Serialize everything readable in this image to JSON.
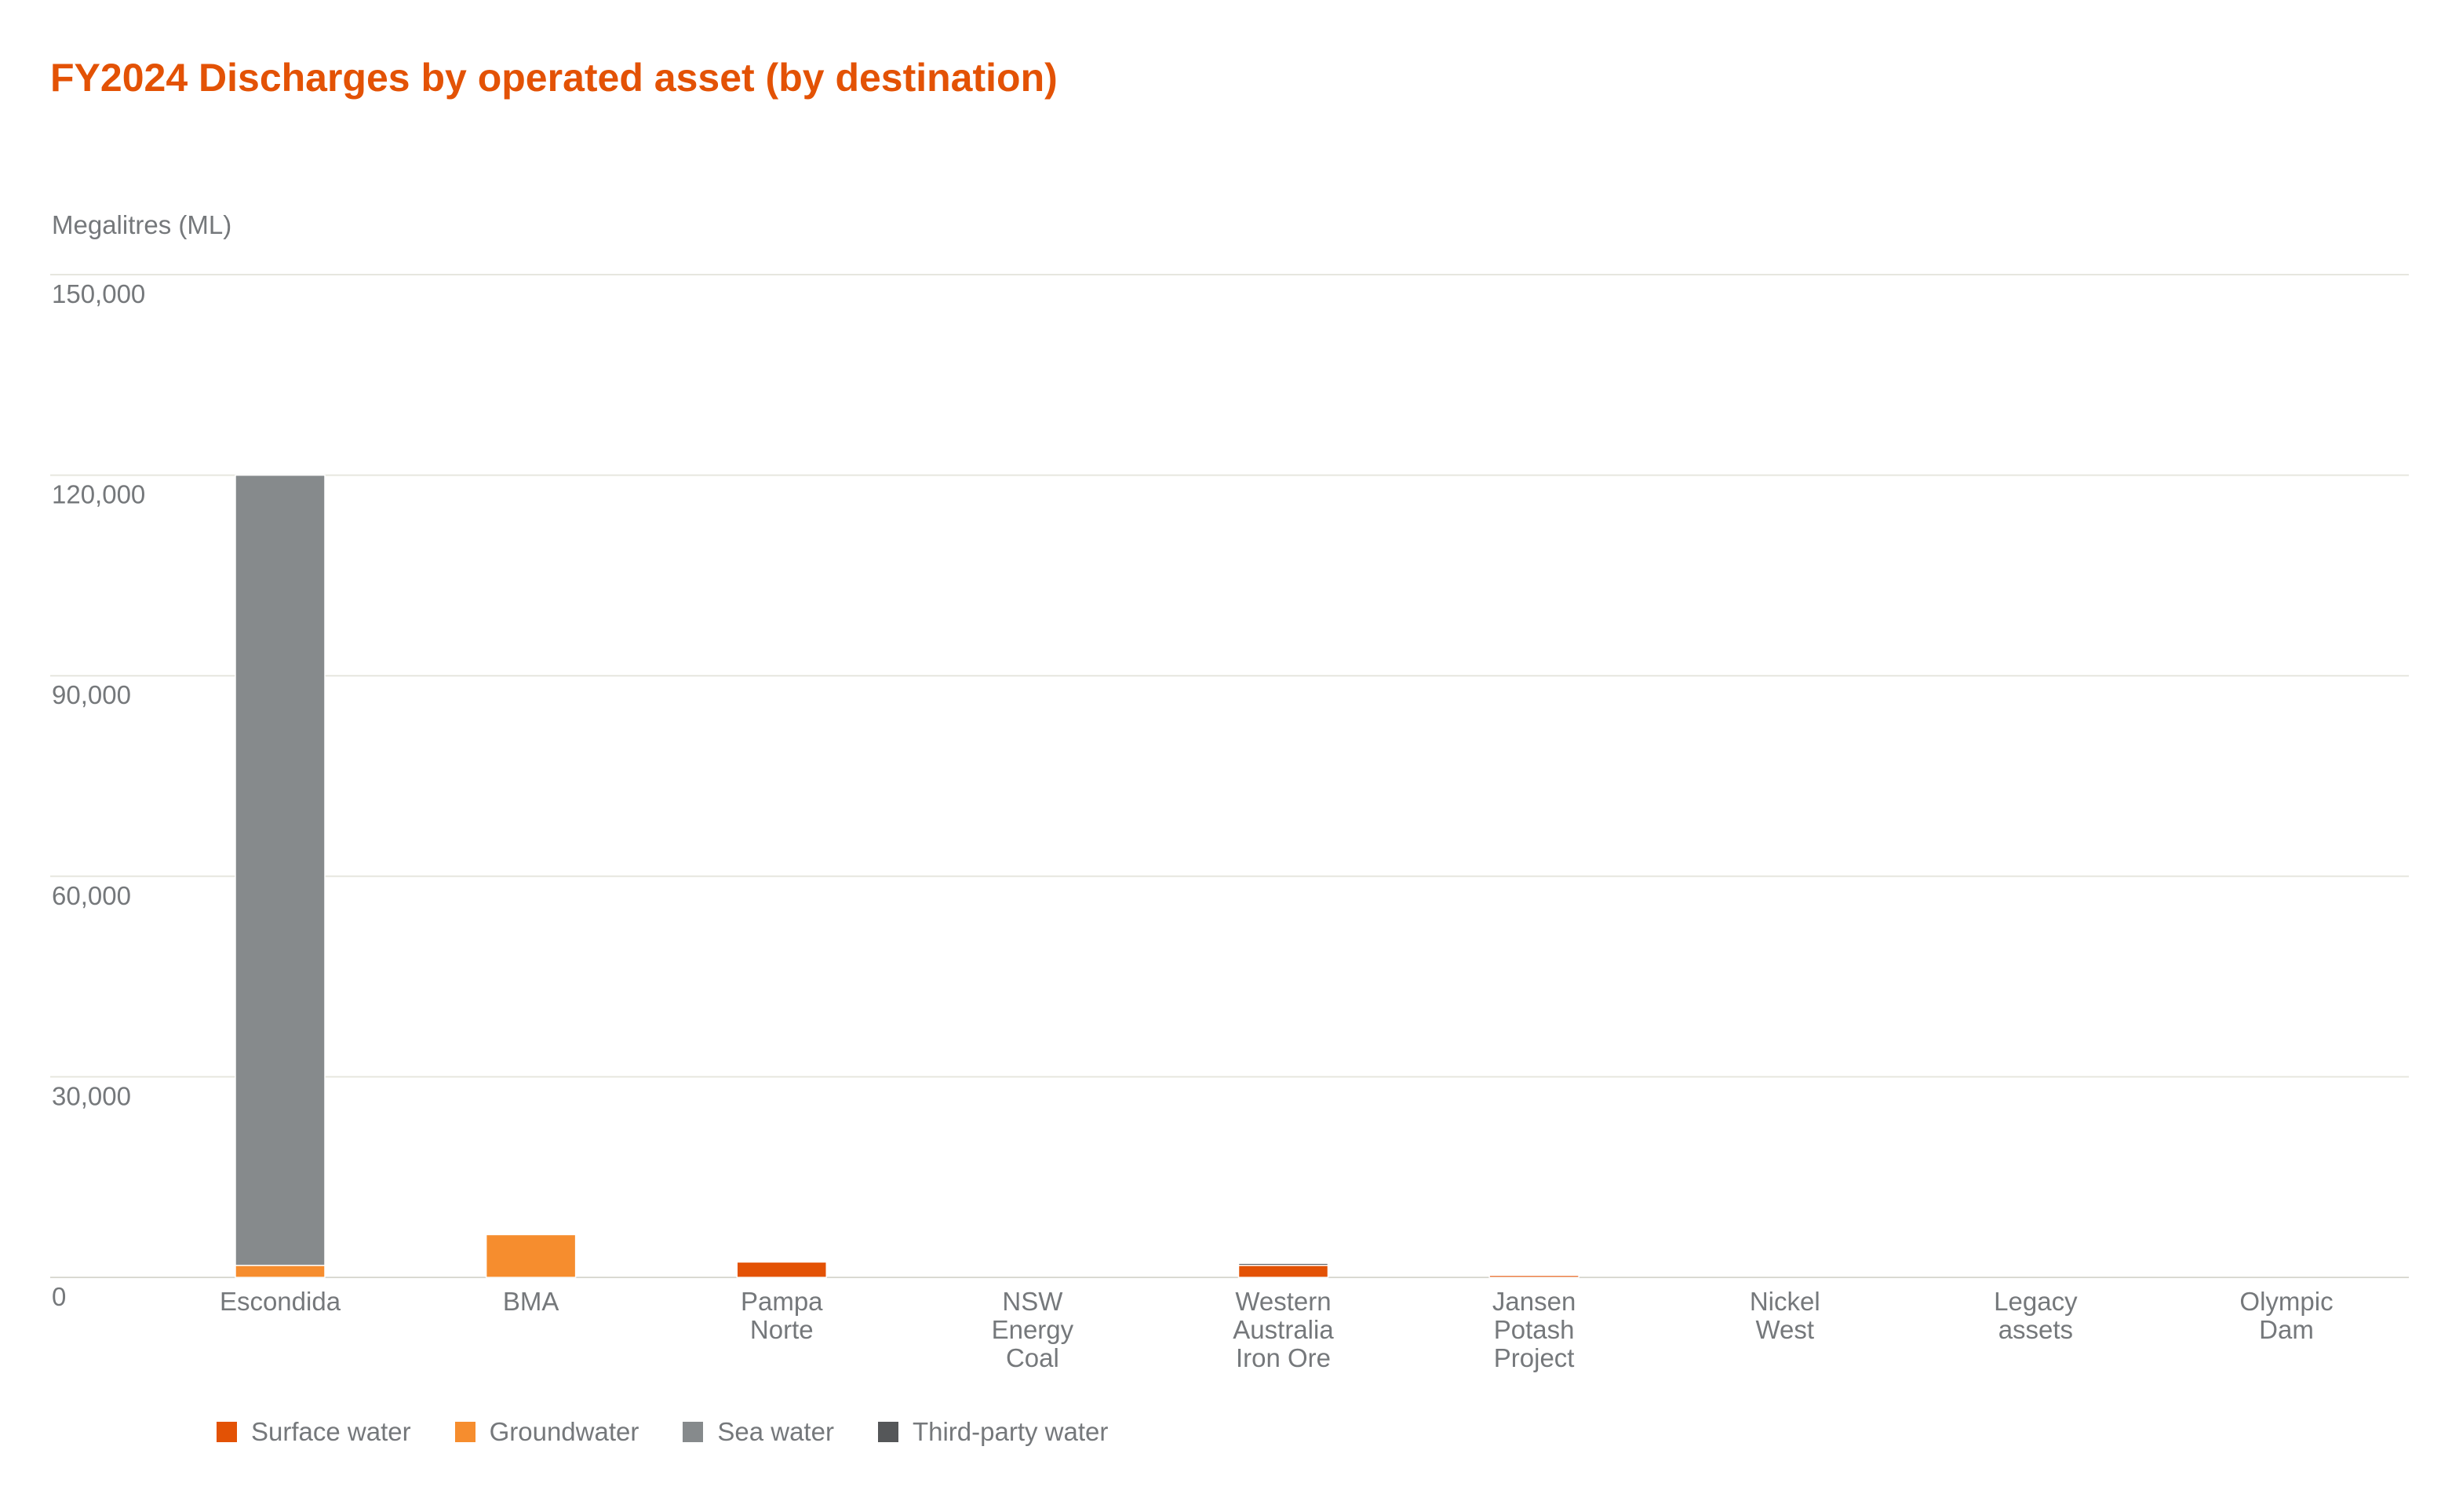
{
  "title": "FY2024 Discharges by operated asset (by destination)",
  "units_label": "Megalitres (ML)",
  "colors": {
    "accent": "#e35205",
    "text": "#75787b",
    "grid": "#e6e6df"
  },
  "chart_data": {
    "type": "bar",
    "stacked": true,
    "title": "FY2024 Discharges by operated asset (by destination)",
    "ylabel": "Megalitres (ML)",
    "xlabel": "",
    "ylim": [
      0,
      150000
    ],
    "yticks": [
      0,
      30000,
      60000,
      90000,
      120000,
      150000
    ],
    "ytick_labels": [
      "0",
      "30,000",
      "60,000",
      "90,000",
      "120,000",
      "150,000"
    ],
    "grid": true,
    "legend_position": "bottom-left",
    "categories": [
      [
        "Escondida"
      ],
      [
        "BMA"
      ],
      [
        "Pampa",
        "Norte"
      ],
      [
        "NSW",
        "Energy",
        "Coal"
      ],
      [
        "Western",
        "Australia",
        "Iron Ore"
      ],
      [
        "Jansen",
        "Potash",
        "Project"
      ],
      [
        "Nickel",
        "West"
      ],
      [
        "Legacy",
        "assets"
      ],
      [
        "Olympic",
        "Dam"
      ]
    ],
    "series": [
      {
        "name": "Surface water",
        "color": "#e35205",
        "values": [
          0,
          0,
          2300,
          0,
          1800,
          300,
          0,
          0,
          0
        ]
      },
      {
        "name": "Groundwater",
        "color": "#f68d2e",
        "values": [
          1800,
          6400,
          0,
          0,
          0,
          0,
          0,
          0,
          0
        ]
      },
      {
        "name": "Sea water",
        "color": "#868a8c",
        "values": [
          118200,
          0,
          0,
          0,
          0,
          0,
          0,
          0,
          0
        ]
      },
      {
        "name": "Third-party water",
        "color": "#555759",
        "values": [
          0,
          0,
          0,
          0,
          300,
          0,
          0,
          0,
          0
        ]
      }
    ]
  }
}
